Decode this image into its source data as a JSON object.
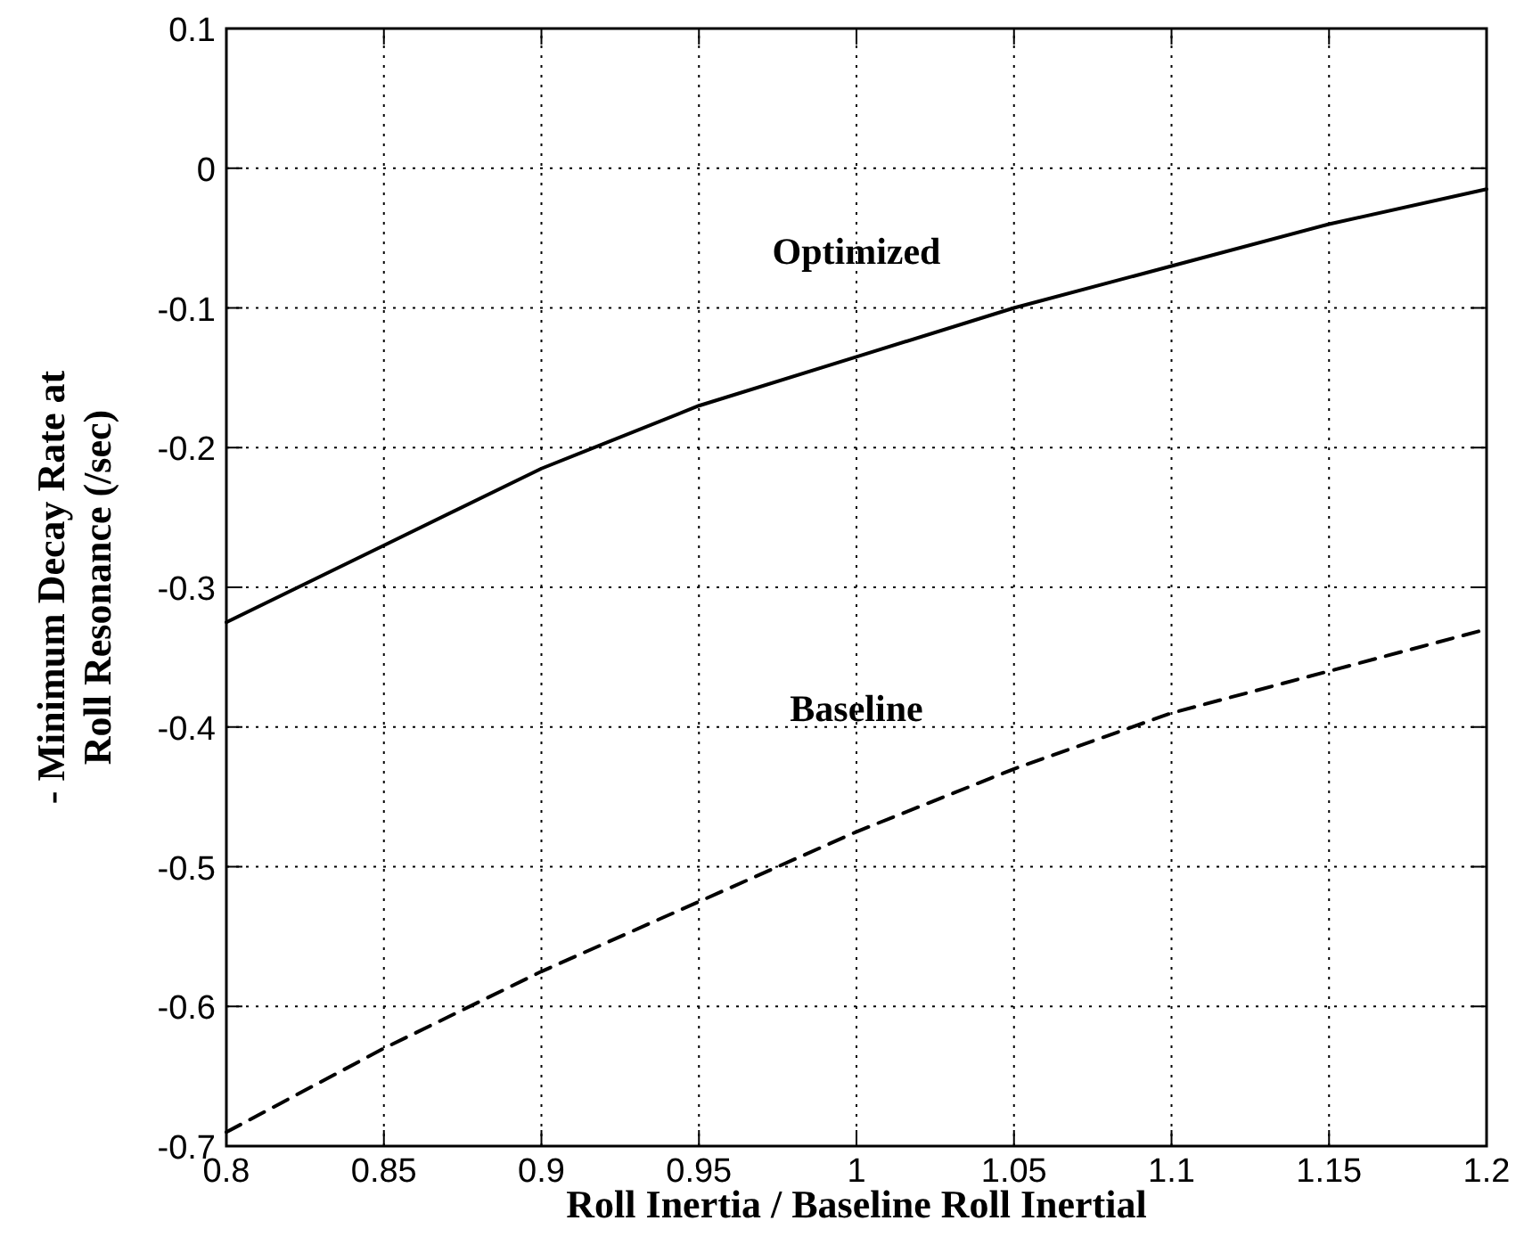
{
  "chart_data": {
    "type": "line",
    "xlabel": "Roll Inertia / Baseline Roll Inertial",
    "ylabel": "- Minimum Decay Rate at\nRoll Resonance (/sec)",
    "x": [
      0.8,
      0.85,
      0.9,
      0.95,
      1.0,
      1.05,
      1.1,
      1.15,
      1.2
    ],
    "series": [
      {
        "name": "Optimized",
        "color": "#000000",
        "line_style": "solid",
        "values": [
          -0.325,
          -0.27,
          -0.215,
          -0.17,
          -0.135,
          -0.1,
          -0.07,
          -0.04,
          -0.015
        ]
      },
      {
        "name": "Baseline",
        "color": "#000000",
        "line_style": "dashed",
        "values": [
          -0.69,
          -0.63,
          -0.575,
          -0.525,
          -0.475,
          -0.43,
          -0.39,
          -0.36,
          -0.33
        ]
      }
    ],
    "xlim": [
      0.8,
      1.2
    ],
    "xticks": [
      0.8,
      0.85,
      0.9,
      0.95,
      1,
      1.05,
      1.1,
      1.15,
      1.2
    ],
    "ylim": [
      -0.7,
      0.1
    ],
    "yticks": [
      -0.7,
      -0.6,
      -0.5,
      -0.4,
      -0.3,
      -0.2,
      -0.1,
      0,
      0.1
    ],
    "grid": true,
    "legend": false,
    "marker": "none"
  }
}
